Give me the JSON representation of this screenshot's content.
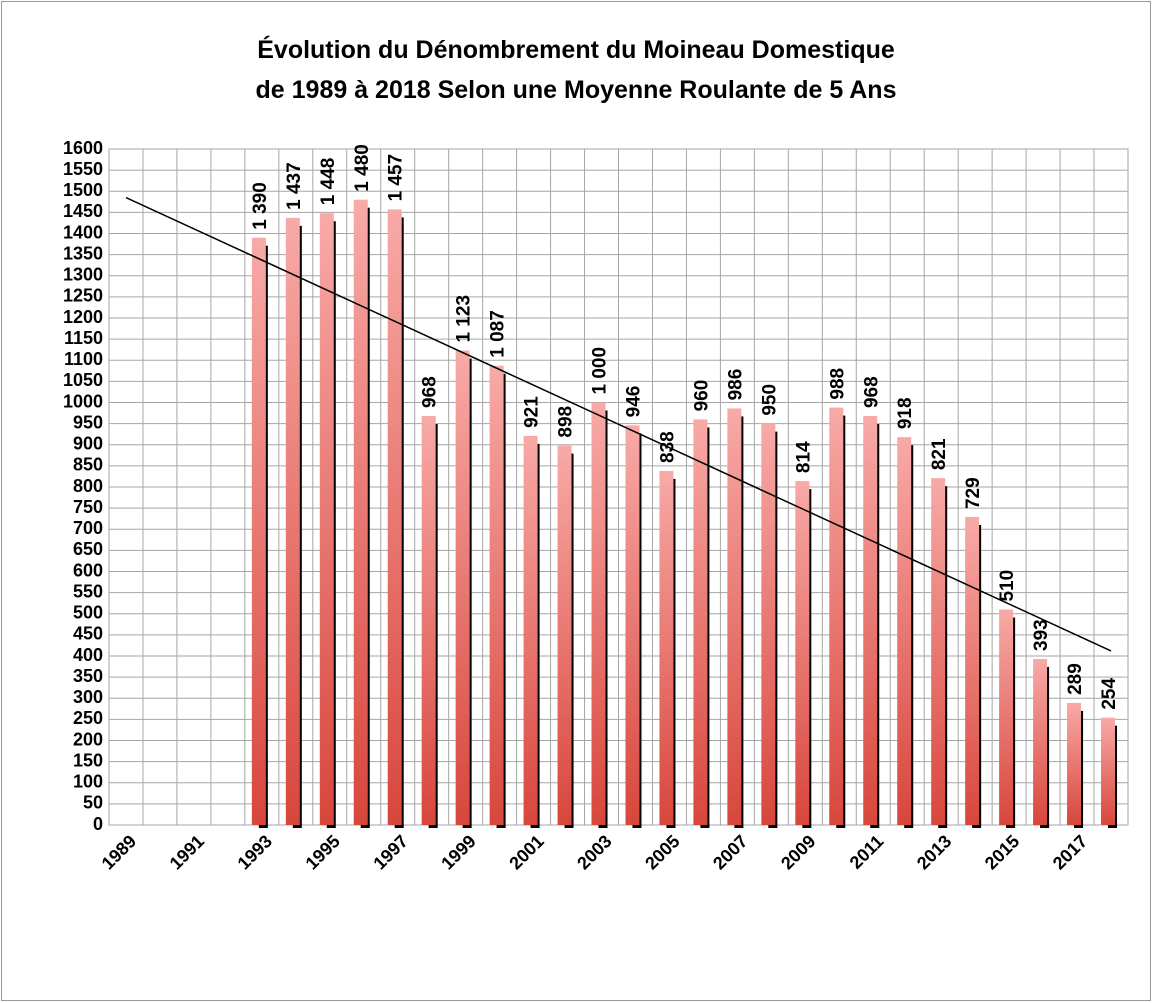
{
  "chart_data": {
    "type": "bar",
    "title": [
      "Évolution du Dénombrement du Moineau Domestique",
      "de 1989 à 2018 Selon une Moyenne Roulante de 5 Ans"
    ],
    "categories": [
      "1989",
      null,
      "1991",
      null,
      "1993",
      null,
      "1995",
      null,
      "1997",
      null,
      "1999",
      null,
      "2001",
      null,
      "2003",
      null,
      "2005",
      null,
      "2007",
      null,
      "2009",
      null,
      "2011",
      null,
      "2013",
      null,
      "2015",
      null,
      "2017",
      null
    ],
    "values": [
      null,
      null,
      null,
      null,
      1390,
      1437,
      1448,
      1480,
      1457,
      968,
      1123,
      1087,
      921,
      898,
      1000,
      946,
      838,
      960,
      986,
      950,
      814,
      988,
      968,
      918,
      821,
      729,
      510,
      393,
      289,
      254
    ],
    "value_labels": [
      null,
      null,
      null,
      null,
      "1 390",
      "1 437",
      "1 448",
      "1 480",
      "1 457",
      "968",
      "1 123",
      "1 087",
      "921",
      "898",
      "1 000",
      "946",
      "838",
      "960",
      "986",
      "950",
      "814",
      "988",
      "968",
      "918",
      "821",
      "729",
      "510",
      "393",
      "289",
      "254"
    ],
    "gradient": [
      "#f8aaa7",
      "#d8463c"
    ],
    "shadow_color": "#000000",
    "trend_line": {
      "values": [
        1485,
        412
      ],
      "color": "#000000"
    },
    "ylim": [
      0,
      1600
    ],
    "yticks": [
      0,
      50,
      100,
      150,
      200,
      250,
      300,
      350,
      400,
      450,
      500,
      550,
      600,
      650,
      700,
      750,
      800,
      850,
      900,
      950,
      1000,
      1050,
      1100,
      1150,
      1200,
      1250,
      1300,
      1350,
      1400,
      1450,
      1500,
      1550,
      1600
    ],
    "grid": true
  }
}
